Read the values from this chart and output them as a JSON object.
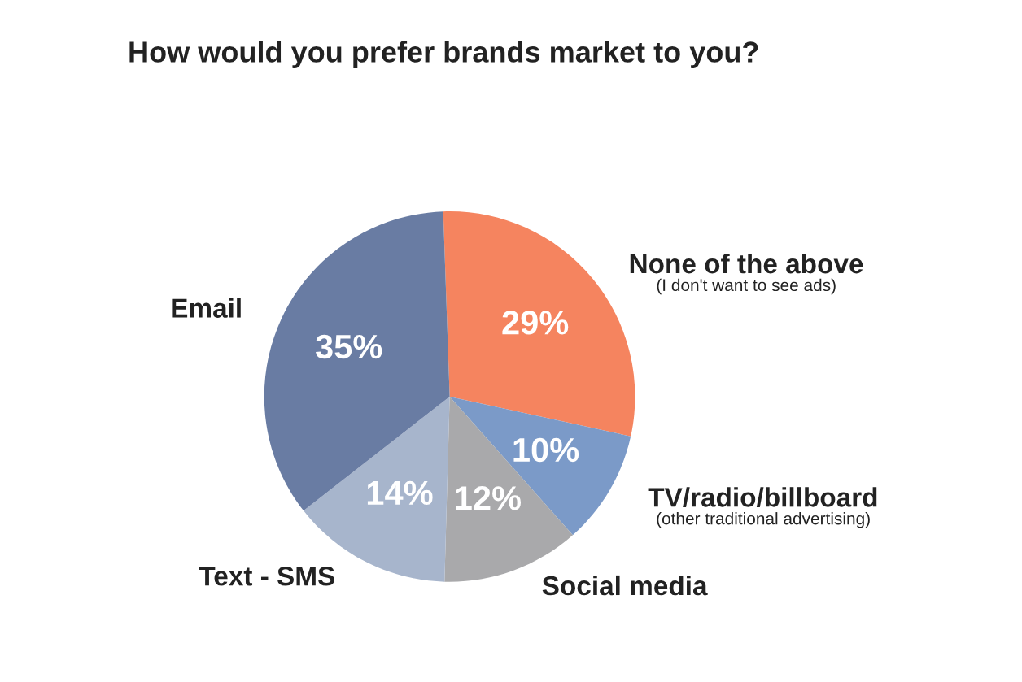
{
  "chart_data": {
    "type": "pie",
    "title": "How would you prefer brands market to you?",
    "categories": [
      "None of the above\n(I don't want to see ads)",
      "TV/radio/billboard\n(other traditional advertising)",
      "Social media",
      "Text - SMS",
      "Email"
    ],
    "values": [
      29,
      10,
      12,
      14,
      35
    ],
    "value_labels": [
      "29%",
      "10%",
      "12%",
      "14%",
      "35%"
    ],
    "colors": [
      "#f5845f",
      "#7b9ac8",
      "#a9a9ab",
      "#a7b5cc",
      "#697ca3"
    ]
  }
}
